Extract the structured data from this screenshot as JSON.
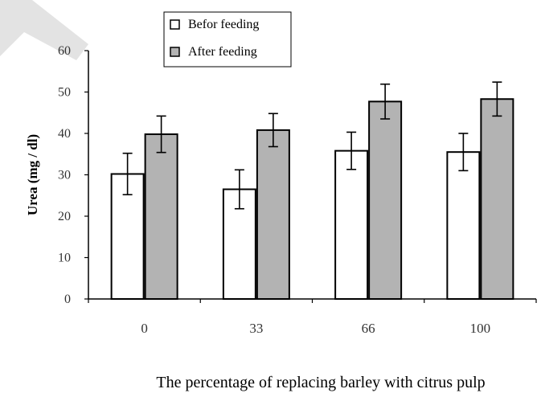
{
  "chart_data": {
    "type": "bar",
    "title": "",
    "xlabel": "The percentage of replacing barley with citrus pulp",
    "ylabel": "Urea (mg / dl)",
    "categories": [
      "0",
      "33",
      "66",
      "100"
    ],
    "ylim": [
      0,
      60
    ],
    "yticks": [
      "0",
      "10",
      "20",
      "30",
      "40",
      "50",
      "60"
    ],
    "grid": false,
    "legend_position": "top-left",
    "series": [
      {
        "name": "Befor feeding",
        "color": "#ffffff",
        "values": [
          30.2,
          26.5,
          35.8,
          35.5
        ],
        "errors": [
          5.0,
          4.7,
          4.5,
          4.5
        ]
      },
      {
        "name": "After feeding",
        "color": "#b3b3b3",
        "values": [
          39.8,
          40.8,
          47.7,
          48.3
        ],
        "errors": [
          4.4,
          4.0,
          4.2,
          4.1
        ]
      }
    ]
  }
}
